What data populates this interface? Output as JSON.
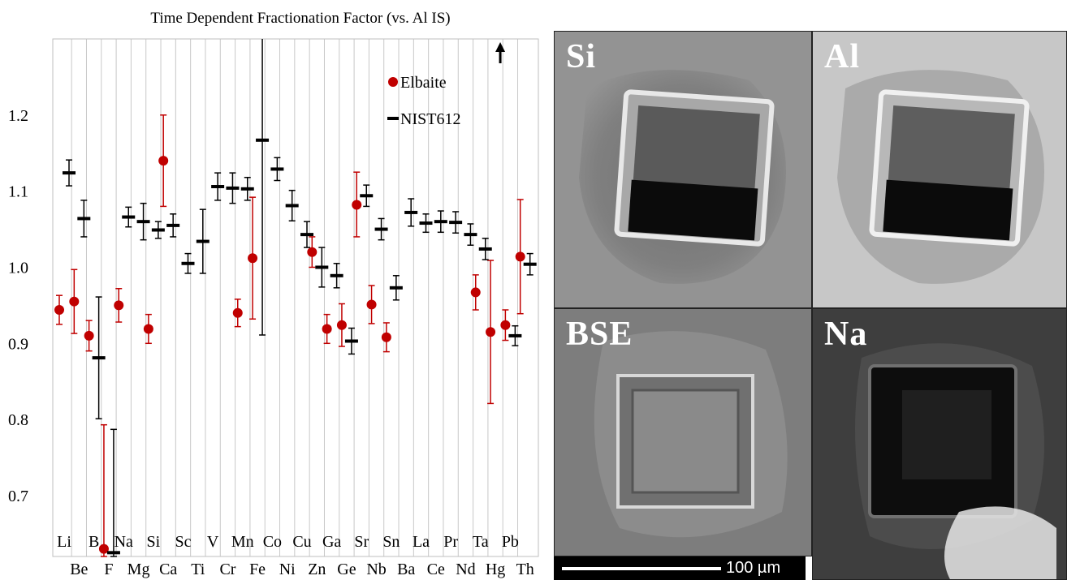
{
  "chart_data": {
    "type": "scatter",
    "title": "Time Dependent Fractionation Factor (vs. Al IS)",
    "xlabel": "",
    "ylabel": "",
    "ylim": [
      0.62,
      1.3
    ],
    "yticks": [
      "0.7",
      "0.8",
      "0.9",
      "1.0",
      "1.1",
      "1.2"
    ],
    "grid": "vertical",
    "legend": "top-right",
    "categories": [
      "Li",
      "Be",
      "B",
      "F",
      "Na",
      "Mg",
      "Si",
      "Ca",
      "Sc",
      "Ti",
      "V",
      "Cr",
      "Mn",
      "Fe",
      "Co",
      "Ni",
      "Cu",
      "Zn",
      "Ga",
      "Ge",
      "Sr",
      "Nb",
      "Sn",
      "Ba",
      "La",
      "Ce",
      "Pr",
      "Nd",
      "Ta",
      "Hg",
      "Pb",
      "Th"
    ],
    "arrow_category": "Hg",
    "series": [
      {
        "name": "Elbaite",
        "color": "#c00000",
        "marker": "circle",
        "points": [
          {
            "x": "Li",
            "y": 0.944,
            "lo": 0.925,
            "hi": 0.963
          },
          {
            "x": "Be",
            "y": 0.955,
            "lo": 0.913,
            "hi": 0.997
          },
          {
            "x": "B",
            "y": 0.91,
            "lo": 0.89,
            "hi": 0.93
          },
          {
            "x": "F",
            "y": 0.63,
            "lo": 0.62,
            "hi": 0.793
          },
          {
            "x": "Na",
            "y": 0.95,
            "lo": 0.928,
            "hi": 0.972
          },
          {
            "x": "Si",
            "y": 0.919,
            "lo": 0.9,
            "hi": 0.938
          },
          {
            "x": "Ca",
            "y": 1.14,
            "lo": 1.08,
            "hi": 1.2
          },
          {
            "x": "Mn",
            "y": 0.94,
            "lo": 0.922,
            "hi": 0.958
          },
          {
            "x": "Fe",
            "y": 1.012,
            "lo": 0.932,
            "hi": 1.092
          },
          {
            "x": "Zn",
            "y": 1.02,
            "lo": 1.0,
            "hi": 1.04
          },
          {
            "x": "Ga",
            "y": 0.919,
            "lo": 0.9,
            "hi": 0.938
          },
          {
            "x": "Ge",
            "y": 0.924,
            "lo": 0.896,
            "hi": 0.952
          },
          {
            "x": "Sr",
            "y": 1.082,
            "lo": 1.04,
            "hi": 1.125
          },
          {
            "x": "Nb",
            "y": 0.951,
            "lo": 0.926,
            "hi": 0.976
          },
          {
            "x": "Sn",
            "y": 0.908,
            "lo": 0.889,
            "hi": 0.927
          },
          {
            "x": "Ta",
            "y": 0.967,
            "lo": 0.944,
            "hi": 0.99
          },
          {
            "x": "Hg",
            "y": 0.915,
            "lo": 0.821,
            "hi": 1.009
          },
          {
            "x": "Pb",
            "y": 0.924,
            "lo": 0.904,
            "hi": 0.944
          },
          {
            "x": "Th",
            "y": 1.014,
            "lo": 0.939,
            "hi": 1.089
          }
        ]
      },
      {
        "name": "NIST612",
        "color": "#000000",
        "marker": "dash",
        "points": [
          {
            "x": "Li",
            "y": 1.124,
            "lo": 1.107,
            "hi": 1.141
          },
          {
            "x": "Be",
            "y": 1.064,
            "lo": 1.04,
            "hi": 1.088
          },
          {
            "x": "B",
            "y": 0.881,
            "lo": 0.801,
            "hi": 0.961
          },
          {
            "x": "F",
            "y": 0.625,
            "lo": 0.62,
            "hi": 0.787
          },
          {
            "x": "Na",
            "y": 1.066,
            "lo": 1.053,
            "hi": 1.079
          },
          {
            "x": "Mg",
            "y": 1.06,
            "lo": 1.036,
            "hi": 1.084
          },
          {
            "x": "Si",
            "y": 1.049,
            "lo": 1.038,
            "hi": 1.06
          },
          {
            "x": "Ca",
            "y": 1.055,
            "lo": 1.04,
            "hi": 1.07
          },
          {
            "x": "Sc",
            "y": 1.005,
            "lo": 0.992,
            "hi": 1.018
          },
          {
            "x": "Ti",
            "y": 1.034,
            "lo": 0.992,
            "hi": 1.076
          },
          {
            "x": "V",
            "y": 1.106,
            "lo": 1.088,
            "hi": 1.124
          },
          {
            "x": "Cr",
            "y": 1.104,
            "lo": 1.084,
            "hi": 1.124
          },
          {
            "x": "Mn",
            "y": 1.103,
            "lo": 1.088,
            "hi": 1.118
          },
          {
            "x": "Fe",
            "y": 1.167,
            "lo": 0.911,
            "hi": 1.3
          },
          {
            "x": "Co",
            "y": 1.129,
            "lo": 1.114,
            "hi": 1.144
          },
          {
            "x": "Ni",
            "y": 1.081,
            "lo": 1.061,
            "hi": 1.101
          },
          {
            "x": "Cu",
            "y": 1.043,
            "lo": 1.026,
            "hi": 1.06
          },
          {
            "x": "Zn",
            "y": 1.0,
            "lo": 0.974,
            "hi": 1.026
          },
          {
            "x": "Ga",
            "y": 0.989,
            "lo": 0.973,
            "hi": 1.005
          },
          {
            "x": "Ge",
            "y": 0.903,
            "lo": 0.886,
            "hi": 0.92
          },
          {
            "x": "Sr",
            "y": 1.094,
            "lo": 1.08,
            "hi": 1.108
          },
          {
            "x": "Nb",
            "y": 1.05,
            "lo": 1.036,
            "hi": 1.064
          },
          {
            "x": "Sn",
            "y": 0.973,
            "lo": 0.957,
            "hi": 0.989
          },
          {
            "x": "Ba",
            "y": 1.072,
            "lo": 1.054,
            "hi": 1.09
          },
          {
            "x": "La",
            "y": 1.058,
            "lo": 1.046,
            "hi": 1.07
          },
          {
            "x": "Ce",
            "y": 1.06,
            "lo": 1.046,
            "hi": 1.074
          },
          {
            "x": "Pr",
            "y": 1.059,
            "lo": 1.045,
            "hi": 1.073
          },
          {
            "x": "Nd",
            "y": 1.043,
            "lo": 1.029,
            "hi": 1.057
          },
          {
            "x": "Ta",
            "y": 1.024,
            "lo": 1.01,
            "hi": 1.038
          },
          {
            "x": "Pb",
            "y": 0.91,
            "lo": 0.897,
            "hi": 0.923
          },
          {
            "x": "Th",
            "y": 1.004,
            "lo": 0.99,
            "hi": 1.018
          }
        ]
      }
    ]
  },
  "image_panels": [
    {
      "label": "Si"
    },
    {
      "label": "Al"
    },
    {
      "label": "BSE"
    },
    {
      "label": "Na"
    }
  ],
  "scale_bar": {
    "label": "100 µm"
  }
}
